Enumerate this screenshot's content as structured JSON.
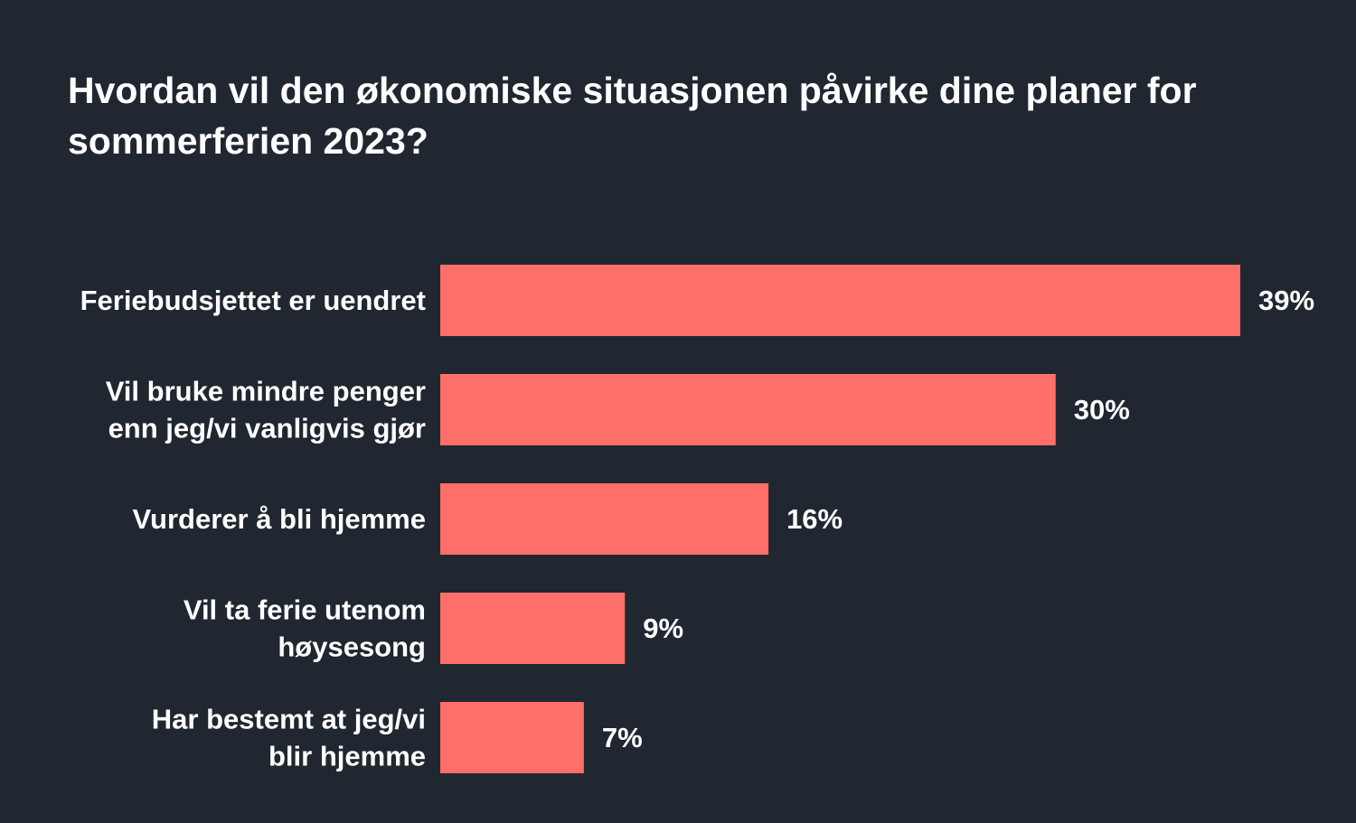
{
  "chart_data": {
    "type": "bar",
    "orientation": "horizontal",
    "title": "Hvordan vil den økonomiske situasjonen påvirke dine planer for sommerferien 2023?",
    "categories": [
      "Feriebudsjettet er uendret",
      "Vil bruke mindre penger enn jeg/vi vanligvis gjør",
      "Vurderer å bli hjemme",
      "Vil ta ferie utenom høysesong",
      "Har bestemt at jeg/vi blir hjemme"
    ],
    "category_lines": [
      [
        "Feriebudsjettet er uendret"
      ],
      [
        "Vil bruke mindre penger",
        "enn jeg/vi vanligvis gjør"
      ],
      [
        "Vurderer å bli hjemme"
      ],
      [
        "Vil ta ferie utenom",
        "høysesong"
      ],
      [
        "Har bestemt at jeg/vi",
        "blir hjemme"
      ]
    ],
    "values": [
      39,
      30,
      16,
      9,
      7
    ],
    "value_labels": [
      "39%",
      "30%",
      "16%",
      "9%",
      "7%"
    ],
    "unit": "%",
    "xlim": [
      0,
      39
    ],
    "grid": false,
    "legend": "none"
  },
  "colors": {
    "background": "#212731",
    "bar": "#ff6f69",
    "text": "#ffffff"
  }
}
